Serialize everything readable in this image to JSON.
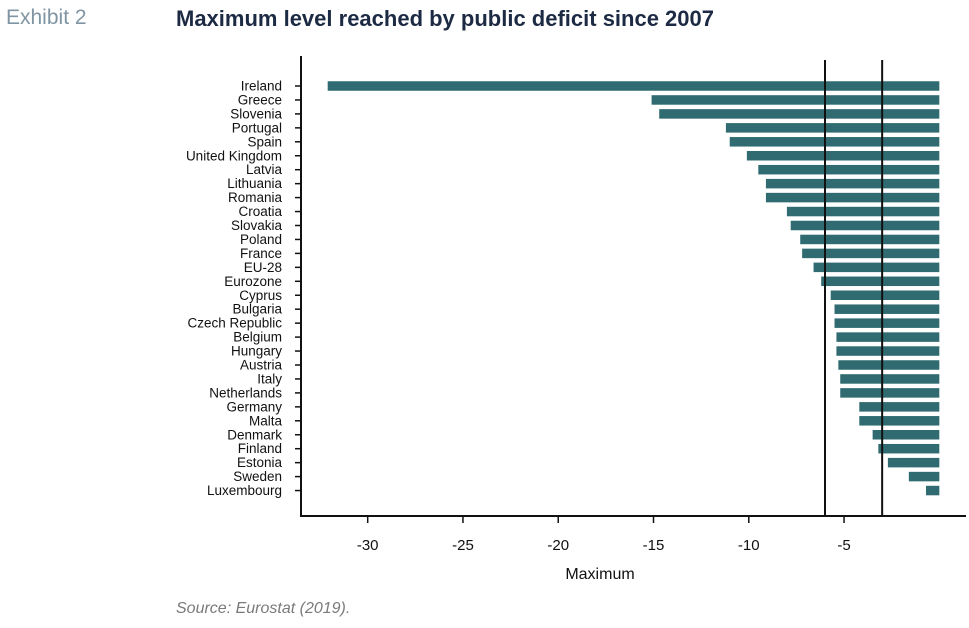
{
  "header": {
    "exhibit_label": "Exhibit 2",
    "title": "Maximum level reached by public deficit since 2007"
  },
  "footer": {
    "source": "Source: Eurostat (2019)."
  },
  "colors": {
    "bar": "#2f6b70",
    "axis": "#111111",
    "reference_line": "#111111",
    "exhibit_label": "#7f95a3",
    "title": "#1d2a44",
    "source": "#7a7a7a"
  },
  "chart_data": {
    "type": "bar",
    "orientation": "horizontal",
    "title": "Maximum level reached by public deficit since 2007",
    "xlabel": "Maximum",
    "ylabel": "",
    "xlim": [
      -33.5,
      1.4
    ],
    "xticks": [
      -30,
      -25,
      -20,
      -15,
      -10,
      -5
    ],
    "tick_labels": [
      "-30",
      "-25",
      "-20",
      "-15",
      "-10",
      "-5"
    ],
    "reference_lines": [
      -6,
      -3
    ],
    "categories": [
      "Ireland",
      "Greece",
      "Slovenia",
      "Portugal",
      "Spain",
      "United Kingdom",
      "Latvia",
      "Lithuania",
      "Romania",
      "Croatia",
      "Slovakia",
      "Poland",
      "France",
      "EU-28",
      "Eurozone",
      "Cyprus",
      "Bulgaria",
      "Czech Republic",
      "Belgium",
      "Hungary",
      "Austria",
      "Italy",
      "Netherlands",
      "Germany",
      "Malta",
      "Denmark",
      "Finland",
      "Estonia",
      "Sweden",
      "Luxembourg"
    ],
    "values": [
      -32.1,
      -15.1,
      -14.7,
      -11.2,
      -11.0,
      -10.1,
      -9.5,
      -9.1,
      -9.1,
      -8.0,
      -7.8,
      -7.3,
      -7.2,
      -6.6,
      -6.2,
      -5.7,
      -5.5,
      -5.5,
      -5.4,
      -5.4,
      -5.3,
      -5.2,
      -5.2,
      -4.2,
      -4.2,
      -3.5,
      -3.2,
      -2.7,
      -1.6,
      -0.7
    ],
    "grid": false,
    "legend": "none"
  }
}
